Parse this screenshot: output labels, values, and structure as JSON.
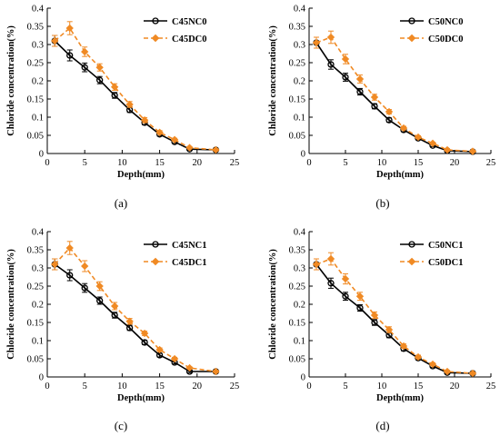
{
  "colors": {
    "nc": "#000000",
    "dc": "#f08a24",
    "axis": "#000000",
    "errbar_nc": "#000000",
    "errbar_dc": "#f08a24"
  },
  "chart_data": [
    {
      "type": "line",
      "caption": "(a)",
      "xlabel": "Depth(mm)",
      "ylabel": "Chloride concentration(%)",
      "xlim": [
        0,
        25
      ],
      "ylim": [
        0,
        0.4
      ],
      "xticks": [
        "0",
        "5",
        "10",
        "15",
        "20",
        "25"
      ],
      "yticks": [
        "0",
        "0.05",
        "0.1",
        "0.15",
        "0.2",
        "0.25",
        "0.3",
        "0.35",
        "0.4"
      ],
      "legend_position": "top-right",
      "grid": false,
      "series": [
        {
          "name": "C45NC0",
          "style": "solid-circle",
          "x": [
            1,
            3,
            5,
            7,
            9,
            11,
            13,
            15,
            17,
            19,
            22.5
          ],
          "y": [
            0.31,
            0.27,
            0.237,
            0.202,
            0.16,
            0.12,
            0.085,
            0.053,
            0.032,
            0.012,
            0.01
          ],
          "err": [
            0.015,
            0.015,
            0.012,
            0.01,
            0.008,
            0.007,
            0.006,
            0.005,
            0.004,
            0.003,
            0.003
          ]
        },
        {
          "name": "C45DC0",
          "style": "dashed-diamond",
          "x": [
            1,
            3,
            5,
            7,
            9,
            11,
            13,
            15,
            17,
            19,
            22.5
          ],
          "y": [
            0.31,
            0.345,
            0.28,
            0.237,
            0.183,
            0.135,
            0.092,
            0.058,
            0.038,
            0.016,
            0.01
          ],
          "err": [
            0.015,
            0.018,
            0.013,
            0.01,
            0.009,
            0.008,
            0.007,
            0.005,
            0.004,
            0.003,
            0.003
          ]
        }
      ]
    },
    {
      "type": "line",
      "caption": "(b)",
      "xlabel": "Depth(mm)",
      "ylabel": "Chloride concentration(%)",
      "xlim": [
        0,
        25
      ],
      "ylim": [
        0,
        0.4
      ],
      "xticks": [
        "0",
        "5",
        "10",
        "15",
        "20",
        "25"
      ],
      "yticks": [
        "0",
        "0.05",
        "0.1",
        "0.15",
        "0.2",
        "0.25",
        "0.3",
        "0.35",
        "0.4"
      ],
      "legend_position": "top-right",
      "grid": false,
      "series": [
        {
          "name": "C50NC0",
          "style": "solid-circle",
          "x": [
            1,
            3,
            5,
            7,
            9,
            11,
            13,
            15,
            17,
            19,
            22.5
          ],
          "y": [
            0.305,
            0.245,
            0.21,
            0.17,
            0.13,
            0.092,
            0.065,
            0.042,
            0.022,
            0.008,
            0.005
          ],
          "err": [
            0.015,
            0.013,
            0.011,
            0.009,
            0.007,
            0.006,
            0.005,
            0.004,
            0.003,
            0.003,
            0.002
          ]
        },
        {
          "name": "C50DC0",
          "style": "dashed-diamond",
          "x": [
            1,
            3,
            5,
            7,
            9,
            11,
            13,
            15,
            17,
            19,
            22.5
          ],
          "y": [
            0.305,
            0.32,
            0.26,
            0.205,
            0.155,
            0.115,
            0.07,
            0.045,
            0.028,
            0.01,
            0.006
          ],
          "err": [
            0.015,
            0.017,
            0.013,
            0.011,
            0.008,
            0.006,
            0.005,
            0.004,
            0.003,
            0.003,
            0.002
          ]
        }
      ]
    },
    {
      "type": "line",
      "caption": "(c)",
      "xlabel": "Depth(mm)",
      "ylabel": "Chloride concentration(%)",
      "xlim": [
        0,
        25
      ],
      "ylim": [
        0,
        0.4
      ],
      "xticks": [
        "0",
        "5",
        "10",
        "15",
        "20",
        "25"
      ],
      "yticks": [
        "0",
        "0.05",
        "0.1",
        "0.15",
        "0.2",
        "0.25",
        "0.3",
        "0.35",
        "0.4"
      ],
      "legend_position": "top-right",
      "grid": false,
      "series": [
        {
          "name": "C45NC1",
          "style": "solid-circle",
          "x": [
            1,
            3,
            5,
            7,
            9,
            11,
            13,
            15,
            17,
            19,
            22.5
          ],
          "y": [
            0.31,
            0.28,
            0.245,
            0.21,
            0.17,
            0.135,
            0.095,
            0.06,
            0.04,
            0.015,
            0.015
          ],
          "err": [
            0.015,
            0.015,
            0.012,
            0.01,
            0.008,
            0.007,
            0.006,
            0.005,
            0.004,
            0.003,
            0.003
          ]
        },
        {
          "name": "C45DC1",
          "style": "dashed-diamond",
          "x": [
            1,
            3,
            5,
            7,
            9,
            11,
            13,
            15,
            17,
            19,
            22.5
          ],
          "y": [
            0.31,
            0.355,
            0.305,
            0.25,
            0.195,
            0.153,
            0.12,
            0.075,
            0.05,
            0.025,
            0.015
          ],
          "err": [
            0.015,
            0.018,
            0.015,
            0.012,
            0.01,
            0.008,
            0.006,
            0.005,
            0.004,
            0.003,
            0.003
          ]
        }
      ]
    },
    {
      "type": "line",
      "caption": "(d)",
      "xlabel": "Depth(mm)",
      "ylabel": "Chloride concentration(%)",
      "xlim": [
        0,
        25
      ],
      "ylim": [
        0,
        0.4
      ],
      "xticks": [
        "0",
        "5",
        "10",
        "15",
        "20",
        "25"
      ],
      "yticks": [
        "0",
        "0.05",
        "0.1",
        "0.15",
        "0.2",
        "0.25",
        "0.3",
        "0.35",
        "0.4"
      ],
      "legend_position": "top-right",
      "grid": false,
      "series": [
        {
          "name": "C50NC1",
          "style": "solid-circle",
          "x": [
            1,
            3,
            5,
            7,
            9,
            11,
            13,
            15,
            17,
            19,
            22.5
          ],
          "y": [
            0.31,
            0.258,
            0.222,
            0.19,
            0.15,
            0.115,
            0.078,
            0.052,
            0.03,
            0.012,
            0.01
          ],
          "err": [
            0.015,
            0.014,
            0.011,
            0.009,
            0.008,
            0.007,
            0.006,
            0.005,
            0.004,
            0.003,
            0.003
          ]
        },
        {
          "name": "C50DC1",
          "style": "dashed-diamond",
          "x": [
            1,
            3,
            5,
            7,
            9,
            11,
            13,
            15,
            17,
            19,
            22.5
          ],
          "y": [
            0.31,
            0.325,
            0.27,
            0.222,
            0.17,
            0.13,
            0.085,
            0.055,
            0.035,
            0.015,
            0.01
          ],
          "err": [
            0.015,
            0.017,
            0.014,
            0.011,
            0.009,
            0.008,
            0.006,
            0.005,
            0.004,
            0.003,
            0.003
          ]
        }
      ]
    }
  ]
}
